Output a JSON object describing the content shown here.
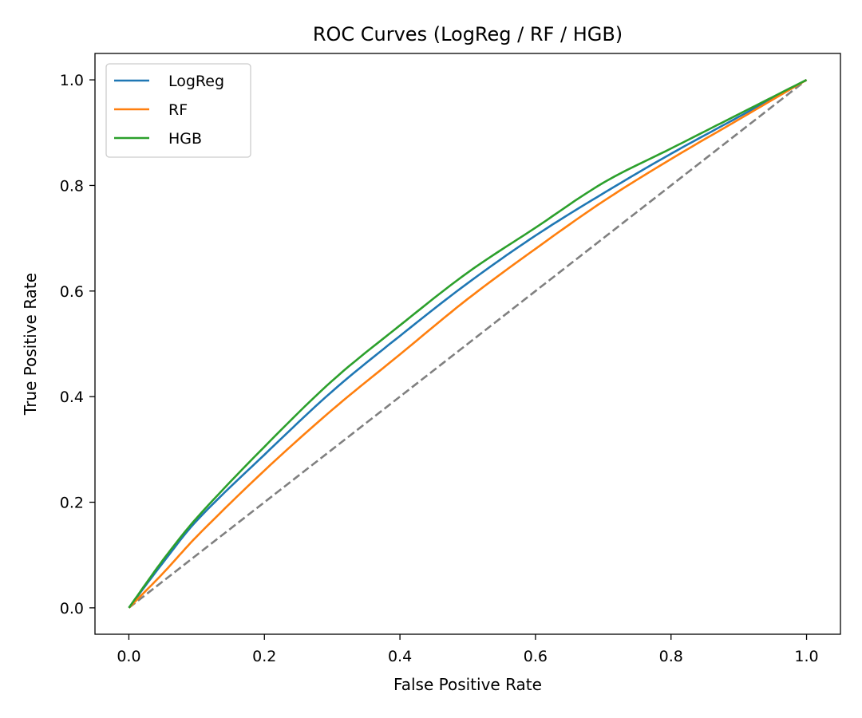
{
  "chart_data": {
    "type": "line",
    "title": "ROC Curves (LogReg / RF / HGB)",
    "xlabel": "False Positive Rate",
    "ylabel": "True Positive Rate",
    "xlim": [
      -0.05,
      1.05
    ],
    "ylim": [
      -0.05,
      1.05
    ],
    "xticks": [
      "0.0",
      "0.2",
      "0.4",
      "0.6",
      "0.8",
      "1.0"
    ],
    "yticks": [
      "0.0",
      "0.2",
      "0.4",
      "0.6",
      "0.8",
      "1.0"
    ],
    "grid": false,
    "legend_position": "top-left",
    "series": [
      {
        "name": "LogReg",
        "color": "#1f77b4",
        "x": [
          0.0,
          0.05,
          0.1,
          0.2,
          0.3,
          0.4,
          0.5,
          0.6,
          0.7,
          0.8,
          0.9,
          1.0
        ],
        "y": [
          0.0,
          0.085,
          0.165,
          0.29,
          0.41,
          0.515,
          0.615,
          0.705,
          0.785,
          0.86,
          0.93,
          1.0
        ]
      },
      {
        "name": "RF",
        "color": "#ff7f0e",
        "x": [
          0.0,
          0.05,
          0.1,
          0.2,
          0.3,
          0.4,
          0.5,
          0.6,
          0.7,
          0.8,
          0.9,
          1.0
        ],
        "y": [
          0.0,
          0.065,
          0.135,
          0.26,
          0.375,
          0.48,
          0.585,
          0.68,
          0.77,
          0.85,
          0.925,
          1.0
        ]
      },
      {
        "name": "HGB",
        "color": "#2ca02c",
        "x": [
          0.0,
          0.05,
          0.1,
          0.2,
          0.3,
          0.4,
          0.5,
          0.6,
          0.7,
          0.8,
          0.9,
          1.0
        ],
        "y": [
          0.0,
          0.09,
          0.17,
          0.305,
          0.43,
          0.535,
          0.635,
          0.72,
          0.805,
          0.87,
          0.935,
          1.0
        ]
      }
    ],
    "reference_line": {
      "color": "#808080",
      "style": "dashed",
      "x": [
        0.0,
        1.0
      ],
      "y": [
        0.0,
        1.0
      ]
    }
  }
}
